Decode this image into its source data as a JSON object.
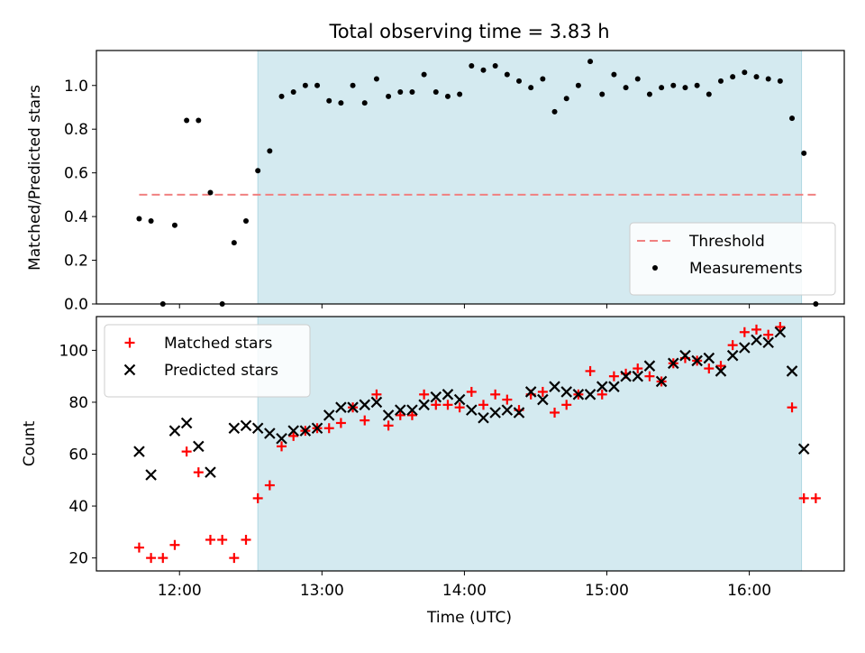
{
  "chart_data": [
    {
      "type": "scatter",
      "title": "Total observing time = 3.83 h",
      "ylabel": "Matched/Predicted stars",
      "xlabel": "",
      "ylim": [
        0,
        1.16
      ],
      "xlim": [
        "11:25",
        "16:40"
      ],
      "yticks": [
        "0.0",
        "0.2",
        "0.4",
        "0.6",
        "0.8",
        "1.0"
      ],
      "shaded_span": [
        "12:33",
        "16:22"
      ],
      "threshold": {
        "name": "Threshold",
        "value": 0.5,
        "x_range": [
          "11:43",
          "16:28"
        ],
        "color": "#f08080"
      },
      "legend_position": "lower right",
      "series": [
        {
          "name": "Measurements",
          "color": "#000000",
          "marker": "dot",
          "points": [
            [
              "11:43",
              0.39
            ],
            [
              "11:48",
              0.38
            ],
            [
              "11:53",
              0.0
            ],
            [
              "11:58",
              0.36
            ],
            [
              "12:03",
              0.84
            ],
            [
              "12:08",
              0.84
            ],
            [
              "12:13",
              0.51
            ],
            [
              "12:18",
              0.0
            ],
            [
              "12:23",
              0.28
            ],
            [
              "12:28",
              0.38
            ],
            [
              "12:33",
              0.61
            ],
            [
              "12:38",
              0.7
            ],
            [
              "12:43",
              0.95
            ],
            [
              "12:48",
              0.97
            ],
            [
              "12:53",
              1.0
            ],
            [
              "12:58",
              1.0
            ],
            [
              "13:03",
              0.93
            ],
            [
              "13:08",
              0.92
            ],
            [
              "13:13",
              1.0
            ],
            [
              "13:18",
              0.92
            ],
            [
              "13:23",
              1.03
            ],
            [
              "13:28",
              0.95
            ],
            [
              "13:33",
              0.97
            ],
            [
              "13:38",
              0.97
            ],
            [
              "13:43",
              1.05
            ],
            [
              "13:48",
              0.97
            ],
            [
              "13:53",
              0.95
            ],
            [
              "13:58",
              0.96
            ],
            [
              "14:03",
              1.09
            ],
            [
              "14:08",
              1.07
            ],
            [
              "14:13",
              1.09
            ],
            [
              "14:18",
              1.05
            ],
            [
              "14:23",
              1.02
            ],
            [
              "14:28",
              0.99
            ],
            [
              "14:33",
              1.03
            ],
            [
              "14:38",
              0.88
            ],
            [
              "14:43",
              0.94
            ],
            [
              "14:48",
              1.0
            ],
            [
              "14:53",
              1.11
            ],
            [
              "14:58",
              0.96
            ],
            [
              "15:03",
              1.05
            ],
            [
              "15:08",
              0.99
            ],
            [
              "15:13",
              1.03
            ],
            [
              "15:18",
              0.96
            ],
            [
              "15:23",
              0.99
            ],
            [
              "15:28",
              1.0
            ],
            [
              "15:33",
              0.99
            ],
            [
              "15:38",
              1.0
            ],
            [
              "15:43",
              0.96
            ],
            [
              "15:48",
              1.02
            ],
            [
              "15:53",
              1.04
            ],
            [
              "15:58",
              1.06
            ],
            [
              "16:03",
              1.04
            ],
            [
              "16:08",
              1.03
            ],
            [
              "16:13",
              1.02
            ],
            [
              "16:18",
              0.85
            ],
            [
              "16:23",
              0.69
            ],
            [
              "16:28",
              0.0
            ]
          ]
        }
      ]
    },
    {
      "type": "scatter",
      "title": "",
      "ylabel": "Count",
      "xlabel": "Time (UTC)",
      "ylim": [
        15,
        113
      ],
      "xlim": [
        "11:25",
        "16:40"
      ],
      "xticks": [
        "12:00",
        "13:00",
        "14:00",
        "15:00",
        "16:00"
      ],
      "yticks": [
        "20",
        "40",
        "60",
        "80",
        "100"
      ],
      "shaded_span": [
        "12:33",
        "16:22"
      ],
      "legend_position": "upper left",
      "series": [
        {
          "name": "Matched stars",
          "color": "#ff0000",
          "marker": "plus",
          "points": [
            [
              "11:43",
              24
            ],
            [
              "11:48",
              20
            ],
            [
              "11:53",
              20
            ],
            [
              "11:58",
              25
            ],
            [
              "12:03",
              61
            ],
            [
              "12:08",
              53
            ],
            [
              "12:13",
              27
            ],
            [
              "12:18",
              27
            ],
            [
              "12:23",
              20
            ],
            [
              "12:28",
              27
            ],
            [
              "12:33",
              43
            ],
            [
              "12:38",
              48
            ],
            [
              "12:43",
              63
            ],
            [
              "12:48",
              67
            ],
            [
              "12:53",
              69
            ],
            [
              "12:58",
              70
            ],
            [
              "13:03",
              70
            ],
            [
              "13:08",
              72
            ],
            [
              "13:13",
              78
            ],
            [
              "13:18",
              73
            ],
            [
              "13:23",
              83
            ],
            [
              "13:28",
              71
            ],
            [
              "13:33",
              75
            ],
            [
              "13:38",
              75
            ],
            [
              "13:43",
              83
            ],
            [
              "13:48",
              79
            ],
            [
              "13:53",
              79
            ],
            [
              "13:58",
              78
            ],
            [
              "14:03",
              84
            ],
            [
              "14:08",
              79
            ],
            [
              "14:13",
              83
            ],
            [
              "14:18",
              81
            ],
            [
              "14:23",
              77
            ],
            [
              "14:28",
              83
            ],
            [
              "14:33",
              84
            ],
            [
              "14:38",
              76
            ],
            [
              "14:43",
              79
            ],
            [
              "14:48",
              83
            ],
            [
              "14:53",
              92
            ],
            [
              "14:58",
              83
            ],
            [
              "15:03",
              90
            ],
            [
              "15:08",
              91
            ],
            [
              "15:13",
              93
            ],
            [
              "15:18",
              90
            ],
            [
              "15:23",
              88
            ],
            [
              "15:28",
              95
            ],
            [
              "15:33",
              97
            ],
            [
              "15:38",
              96
            ],
            [
              "15:43",
              93
            ],
            [
              "15:48",
              94
            ],
            [
              "15:53",
              102
            ],
            [
              "15:58",
              107
            ],
            [
              "16:03",
              108
            ],
            [
              "16:08",
              106
            ],
            [
              "16:13",
              109
            ],
            [
              "16:18",
              78
            ],
            [
              "16:23",
              43
            ],
            [
              "16:28",
              43
            ]
          ]
        },
        {
          "name": "Predicted stars",
          "color": "#000000",
          "marker": "x",
          "points": [
            [
              "11:43",
              61
            ],
            [
              "11:48",
              52
            ],
            [
              "11:58",
              69
            ],
            [
              "12:03",
              72
            ],
            [
              "12:08",
              63
            ],
            [
              "12:13",
              53
            ],
            [
              "12:23",
              70
            ],
            [
              "12:28",
              71
            ],
            [
              "12:33",
              70
            ],
            [
              "12:38",
              68
            ],
            [
              "12:43",
              66
            ],
            [
              "12:48",
              69
            ],
            [
              "12:53",
              69
            ],
            [
              "12:58",
              70
            ],
            [
              "13:03",
              75
            ],
            [
              "13:08",
              78
            ],
            [
              "13:13",
              78
            ],
            [
              "13:18",
              79
            ],
            [
              "13:23",
              80
            ],
            [
              "13:28",
              75
            ],
            [
              "13:33",
              77
            ],
            [
              "13:38",
              77
            ],
            [
              "13:43",
              79
            ],
            [
              "13:48",
              82
            ],
            [
              "13:53",
              83
            ],
            [
              "13:58",
              81
            ],
            [
              "14:03",
              77
            ],
            [
              "14:08",
              74
            ],
            [
              "14:13",
              76
            ],
            [
              "14:18",
              77
            ],
            [
              "14:23",
              76
            ],
            [
              "14:28",
              84
            ],
            [
              "14:33",
              81
            ],
            [
              "14:38",
              86
            ],
            [
              "14:43",
              84
            ],
            [
              "14:48",
              83
            ],
            [
              "14:53",
              83
            ],
            [
              "14:58",
              86
            ],
            [
              "15:03",
              86
            ],
            [
              "15:08",
              90
            ],
            [
              "15:13",
              90
            ],
            [
              "15:18",
              94
            ],
            [
              "15:23",
              88
            ],
            [
              "15:28",
              95
            ],
            [
              "15:33",
              98
            ],
            [
              "15:38",
              96
            ],
            [
              "15:43",
              97
            ],
            [
              "15:48",
              92
            ],
            [
              "15:53",
              98
            ],
            [
              "15:58",
              101
            ],
            [
              "16:03",
              104
            ],
            [
              "16:08",
              103
            ],
            [
              "16:13",
              107
            ],
            [
              "16:18",
              92
            ],
            [
              "16:23",
              62
            ]
          ]
        }
      ]
    }
  ],
  "colors": {
    "shade": "#d4eaf0",
    "shade_edge": "#b0d8e2"
  }
}
